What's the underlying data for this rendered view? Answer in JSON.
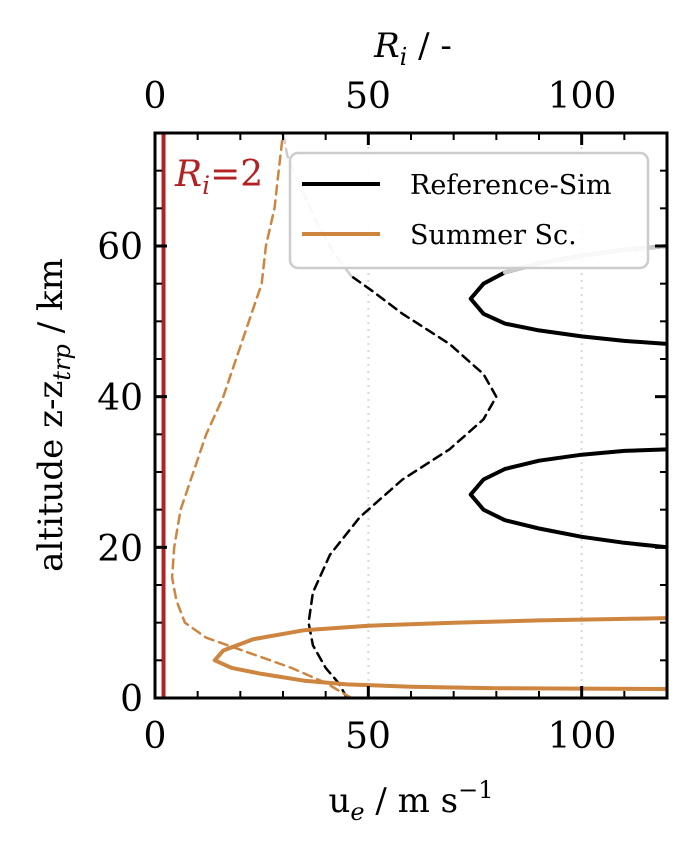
{
  "chart_data": {
    "type": "line",
    "xlabel": "u",
    "xlabel_sub": "e",
    "xlabel_unit": " / m s",
    "xlabel_sup": "−1",
    "x2label_main": "R",
    "x2label_sub": "i",
    "x2label_unit": " / -",
    "ylabel_main": "altitude z-z",
    "ylabel_sub": "trp",
    "ylabel_unit": " / km",
    "xlim": [
      0,
      120
    ],
    "ylim": [
      0,
      75
    ],
    "x_ticks": [
      0,
      50,
      100
    ],
    "x_ticks_labels": [
      "0",
      "50",
      "100"
    ],
    "x2_ticks_labels": [
      "0",
      "50",
      "100"
    ],
    "y_ticks": [
      0,
      20,
      40,
      60
    ],
    "y_ticks_labels": [
      "0",
      "20",
      "40",
      "60"
    ],
    "vline": {
      "x": 2,
      "label_main": "R",
      "label_sub": "i",
      "label_rest": "=2",
      "color": "#b22222"
    },
    "grid": {
      "vertical_dotted_at": [
        50,
        100
      ]
    },
    "legend": {
      "position": "top-right"
    },
    "series": [
      {
        "name": "Reference-Sim",
        "role": "Ri",
        "color": "#000000",
        "style": "solid",
        "points": [
          [
            120,
            20.0
          ],
          [
            110,
            20.6
          ],
          [
            100,
            21.4
          ],
          [
            90,
            22.5
          ],
          [
            82,
            23.6
          ],
          [
            77,
            25.0
          ],
          [
            74,
            27.0
          ],
          [
            77,
            29.0
          ],
          [
            82,
            30.4
          ],
          [
            90,
            31.5
          ],
          [
            100,
            32.3
          ],
          [
            110,
            32.8
          ],
          [
            120,
            33.0
          ]
        ]
      },
      {
        "name": "",
        "role": "Ri",
        "color": "#000000",
        "style": "solid",
        "points": [
          [
            120,
            47.0
          ],
          [
            110,
            47.4
          ],
          [
            100,
            48.0
          ],
          [
            90,
            48.8
          ],
          [
            82,
            49.7
          ],
          [
            77,
            51.0
          ],
          [
            74,
            53.0
          ],
          [
            77,
            55.0
          ],
          [
            82,
            56.5
          ],
          [
            90,
            57.7
          ],
          [
            100,
            58.7
          ],
          [
            110,
            59.5
          ],
          [
            120,
            60.0
          ]
        ]
      },
      {
        "name": "",
        "role": "Ri",
        "color": "#cccccc",
        "style": "solid",
        "points": [
          [
            120,
            60.0
          ],
          [
            110,
            59.5
          ],
          [
            100,
            58.7
          ],
          [
            90,
            57.7
          ],
          [
            82,
            56.5
          ]
        ]
      },
      {
        "name": "",
        "role": "ue",
        "color": "#000000",
        "style": "dashed",
        "points": [
          [
            45,
            0
          ],
          [
            43,
            2
          ],
          [
            40,
            4
          ],
          [
            37,
            7
          ],
          [
            36,
            10
          ],
          [
            37,
            14
          ],
          [
            41,
            19
          ],
          [
            48,
            24
          ],
          [
            58,
            29
          ],
          [
            69,
            33
          ],
          [
            77,
            37
          ],
          [
            80,
            40
          ],
          [
            77,
            43
          ],
          [
            69,
            47
          ],
          [
            58,
            51
          ],
          [
            51,
            54
          ],
          [
            46,
            56
          ]
        ]
      },
      {
        "name": "",
        "role": "ue",
        "color": "#cccccc",
        "style": "dashed",
        "points": [
          [
            46,
            56
          ],
          [
            42,
            59
          ],
          [
            38,
            63
          ],
          [
            34,
            68
          ],
          [
            31,
            72
          ],
          [
            30,
            75
          ]
        ]
      },
      {
        "name": "Summer Sc.",
        "role": "Ri",
        "color": "#cd853f",
        "style": "solid",
        "points": [
          [
            120,
            1.2
          ],
          [
            100,
            1.25
          ],
          [
            80,
            1.3
          ],
          [
            60,
            1.5
          ],
          [
            45,
            1.8
          ],
          [
            35,
            2.3
          ],
          [
            25,
            3.2
          ],
          [
            18,
            4.0
          ],
          [
            14,
            5.0
          ],
          [
            16,
            6.3
          ],
          [
            23,
            7.8
          ],
          [
            35,
            9.0
          ],
          [
            50,
            9.6
          ],
          [
            70,
            10.0
          ],
          [
            90,
            10.3
          ],
          [
            110,
            10.5
          ],
          [
            120,
            10.6
          ]
        ]
      },
      {
        "name": "",
        "role": "ue",
        "color": "#cd853f",
        "style": "dashed",
        "points": [
          [
            46,
            0
          ],
          [
            40,
            2
          ],
          [
            32,
            4
          ],
          [
            22,
            6
          ],
          [
            12,
            8
          ],
          [
            7,
            10
          ],
          [
            5,
            13
          ],
          [
            4,
            16
          ],
          [
            4.5,
            20
          ],
          [
            6,
            25
          ],
          [
            9,
            30
          ],
          [
            12,
            35
          ],
          [
            16,
            40
          ],
          [
            19,
            45
          ],
          [
            22,
            50
          ],
          [
            25,
            55
          ],
          [
            26,
            60
          ],
          [
            28,
            65
          ],
          [
            29,
            70
          ],
          [
            30,
            75
          ]
        ]
      }
    ]
  }
}
